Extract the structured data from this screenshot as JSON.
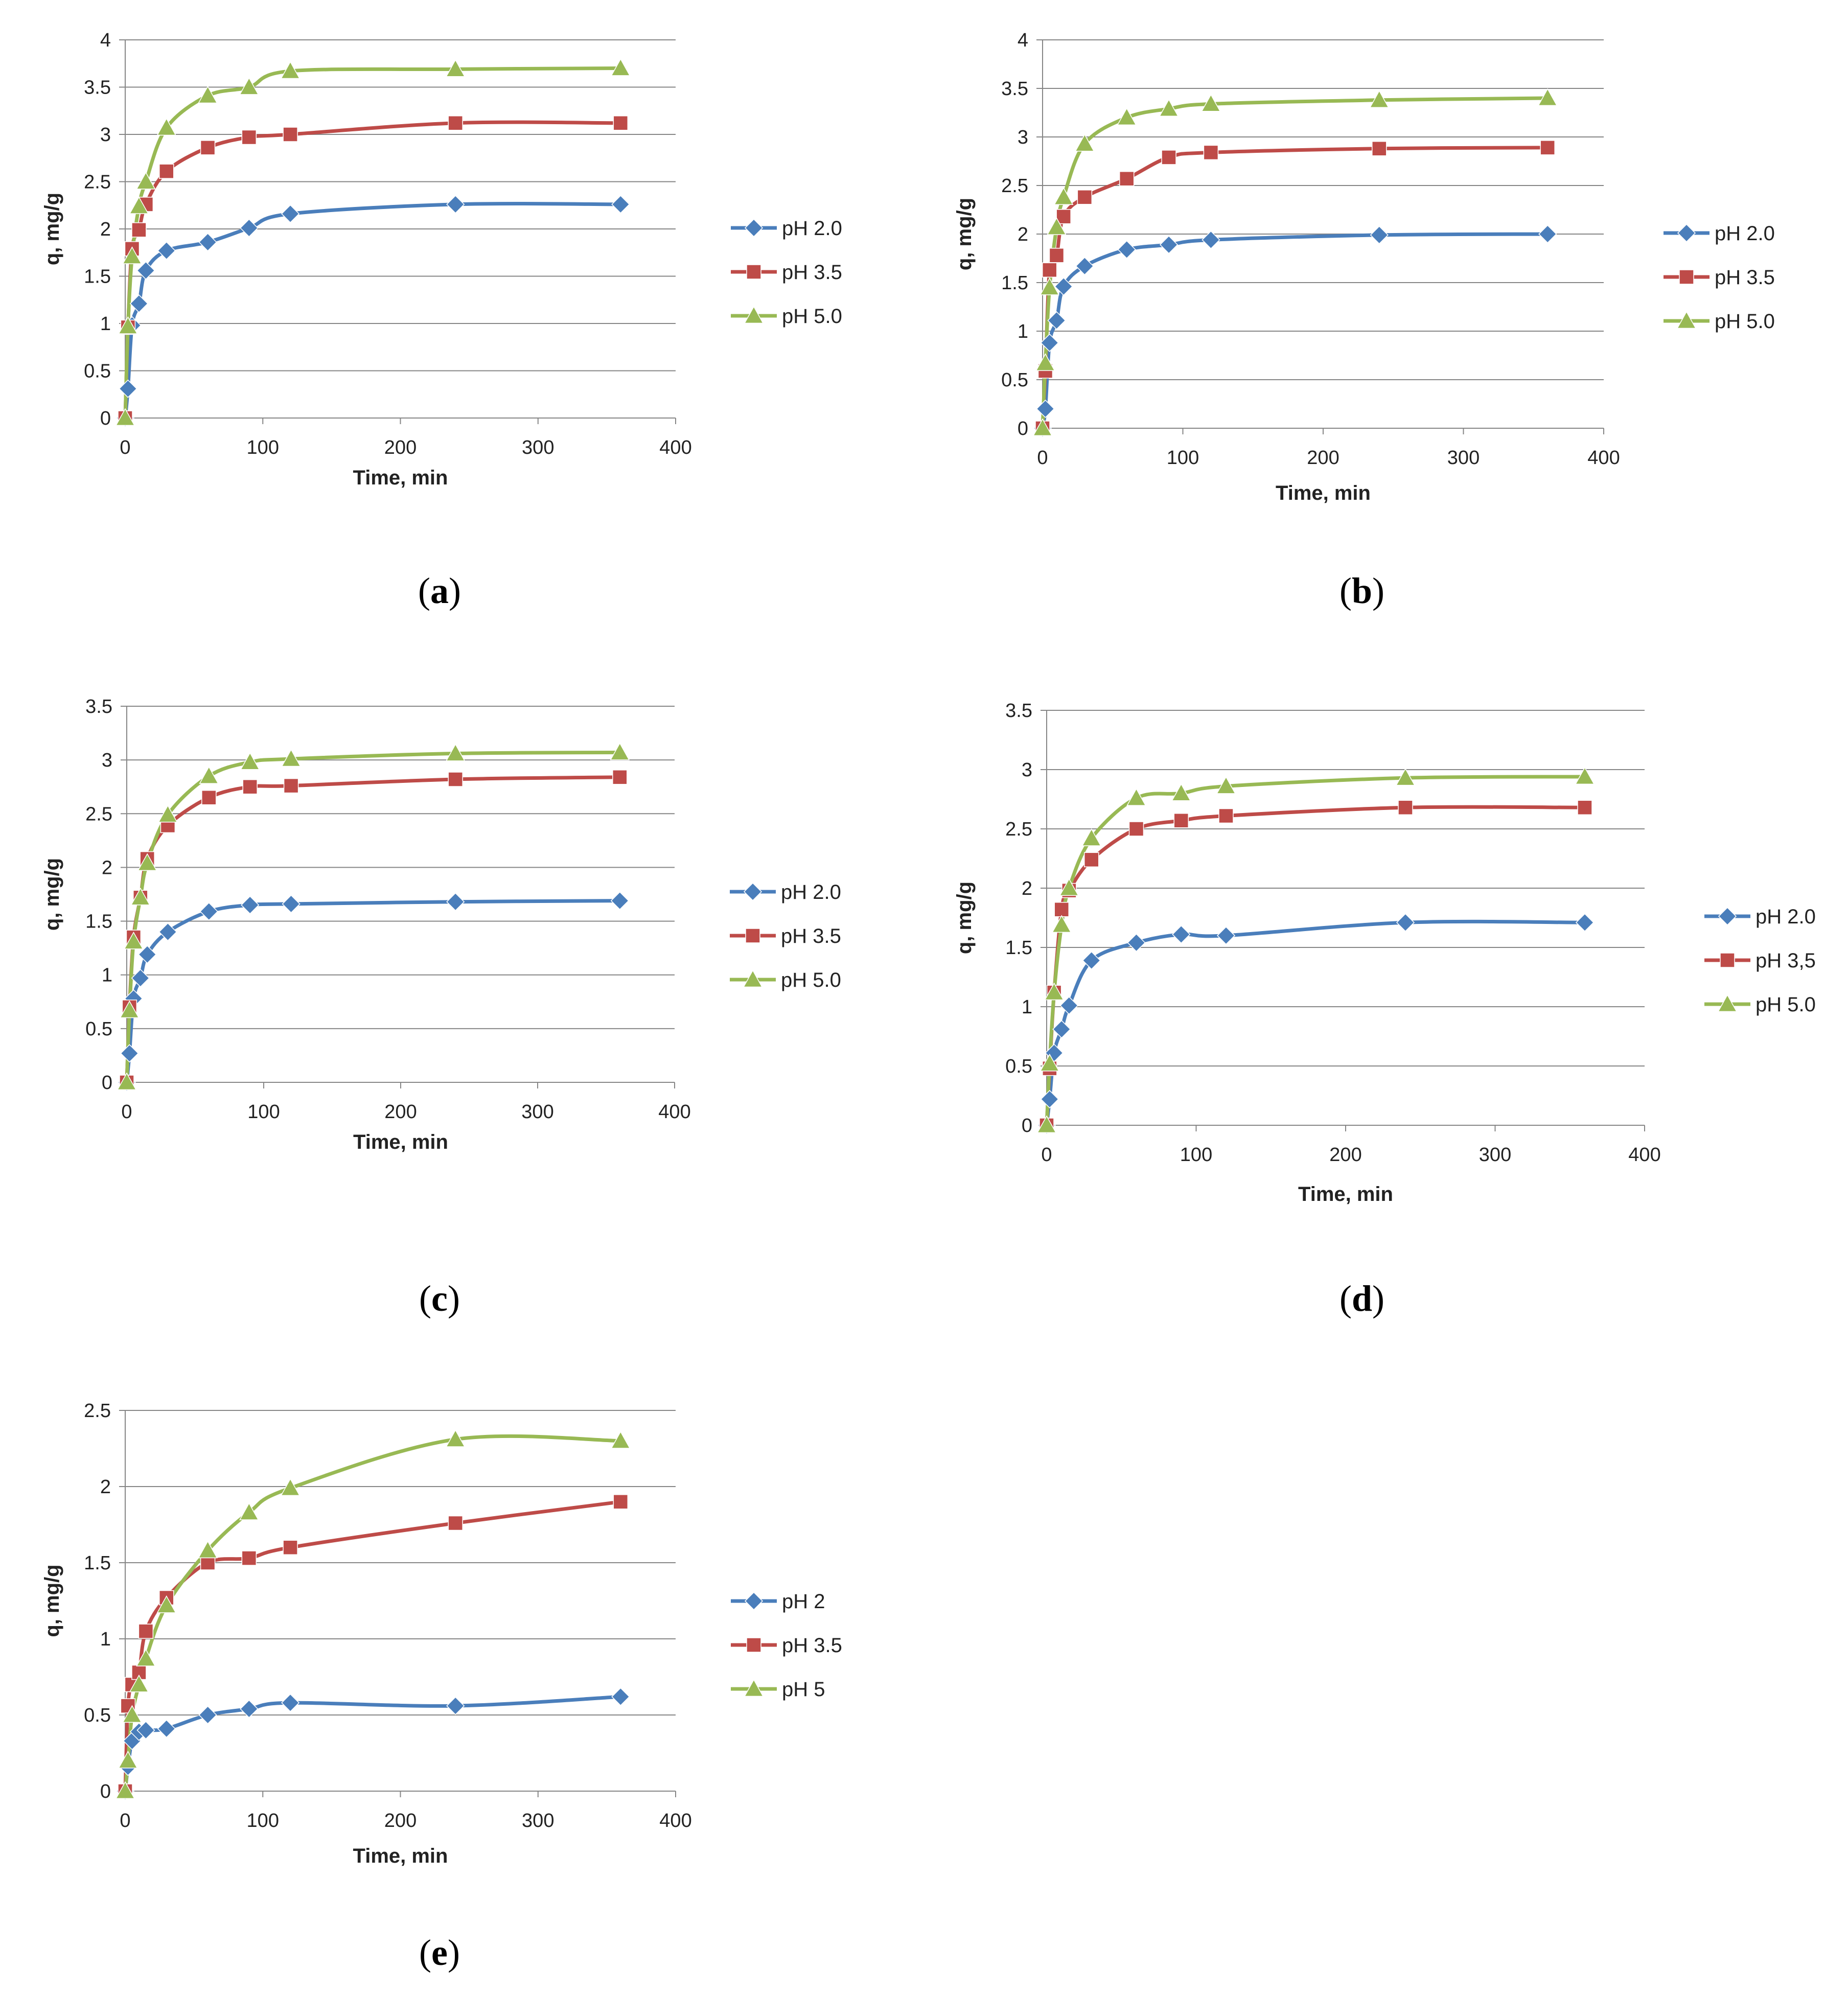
{
  "colors": {
    "pH2": "#4A7EBB",
    "pH35": "#BE4B48",
    "pH5": "#98B954",
    "grid": "#868686"
  },
  "panels": [
    {
      "id": "a",
      "label_open": "(",
      "label_letter": "a",
      "label_close": ")",
      "xlabel": "Time, min",
      "ylabel": "q, mg/g",
      "chart_data": {
        "type": "line",
        "xlim": [
          0,
          400
        ],
        "ylim": [
          0,
          4
        ],
        "xticks": [
          0,
          100,
          200,
          300,
          400
        ],
        "yticks": [
          0,
          0.5,
          1,
          1.5,
          2,
          2.5,
          3,
          3.5,
          4
        ],
        "grid": true,
        "legend": "right",
        "x": [
          0,
          2,
          5,
          10,
          15,
          30,
          60,
          90,
          120,
          240,
          360
        ],
        "series": [
          {
            "name": "pH 2.0",
            "marker": "diamond",
            "color": "#4A7EBB",
            "values": [
              0,
              0.31,
              0.98,
              1.21,
              1.56,
              1.77,
              1.86,
              2.01,
              2.16,
              2.26,
              2.26
            ]
          },
          {
            "name": "pH 3.5",
            "marker": "square",
            "color": "#BE4B48",
            "values": [
              0,
              0.96,
              1.79,
              1.99,
              2.26,
              2.61,
              2.86,
              2.97,
              3.0,
              3.12,
              3.12
            ]
          },
          {
            "name": "pH 5.0",
            "marker": "triangle",
            "color": "#98B954",
            "values": [
              0,
              0.97,
              1.71,
              2.24,
              2.5,
              3.07,
              3.41,
              3.5,
              3.67,
              3.69,
              3.7
            ]
          }
        ]
      }
    },
    {
      "id": "b",
      "label_open": "(",
      "label_letter": "b",
      "label_close": ")",
      "xlabel": "Time, min",
      "ylabel": "q, mg/g",
      "chart_data": {
        "type": "line",
        "xlim": [
          0,
          400
        ],
        "ylim": [
          0,
          4
        ],
        "xticks": [
          0,
          100,
          200,
          300,
          400
        ],
        "yticks": [
          0,
          0.5,
          1,
          1.5,
          2,
          2.5,
          3,
          3.5,
          4
        ],
        "grid": true,
        "legend": "right",
        "x": [
          0,
          2,
          5,
          10,
          15,
          30,
          60,
          90,
          120,
          240,
          360
        ],
        "series": [
          {
            "name": "pH 2.0",
            "marker": "diamond",
            "color": "#4A7EBB",
            "values": [
              0,
              0.2,
              0.88,
              1.11,
              1.46,
              1.67,
              1.84,
              1.89,
              1.94,
              1.99,
              2.0
            ]
          },
          {
            "name": "pH 3.5",
            "marker": "square",
            "color": "#BE4B48",
            "values": [
              0,
              0.59,
              1.63,
              1.78,
              2.18,
              2.38,
              2.57,
              2.79,
              2.84,
              2.88,
              2.89
            ]
          },
          {
            "name": "pH 5.0",
            "marker": "triangle",
            "color": "#98B954",
            "values": [
              0,
              0.67,
              1.45,
              2.07,
              2.38,
              2.93,
              3.2,
              3.29,
              3.34,
              3.38,
              3.4
            ]
          }
        ]
      }
    },
    {
      "id": "c",
      "label_open": "(",
      "label_letter": "c",
      "label_close": ")",
      "xlabel": "Time, min",
      "ylabel": "q, mg/g",
      "chart_data": {
        "type": "line",
        "xlim": [
          0,
          400
        ],
        "ylim": [
          0,
          3.5
        ],
        "xticks": [
          0,
          100,
          200,
          300,
          400
        ],
        "yticks": [
          0,
          0.5,
          1,
          1.5,
          2,
          2.5,
          3,
          3.5
        ],
        "grid": true,
        "legend": "right",
        "x": [
          0,
          2,
          5,
          10,
          15,
          30,
          60,
          90,
          120,
          240,
          360
        ],
        "series": [
          {
            "name": "pH 2.0",
            "marker": "diamond",
            "color": "#4A7EBB",
            "values": [
              0,
              0.27,
              0.78,
              0.97,
              1.19,
              1.4,
              1.59,
              1.65,
              1.66,
              1.68,
              1.69
            ]
          },
          {
            "name": "pH 3.5",
            "marker": "square",
            "color": "#BE4B48",
            "values": [
              0,
              0.7,
              1.35,
              1.72,
              2.08,
              2.39,
              2.65,
              2.75,
              2.76,
              2.82,
              2.84
            ]
          },
          {
            "name": "pH 5.0",
            "marker": "triangle",
            "color": "#98B954",
            "values": [
              0,
              0.67,
              1.31,
              1.72,
              2.04,
              2.49,
              2.85,
              2.98,
              3.01,
              3.06,
              3.07
            ]
          }
        ]
      }
    },
    {
      "id": "d",
      "label_open": "(",
      "label_letter": "d",
      "label_close": ")",
      "xlabel": "Time, min",
      "ylabel": "q, mg/g",
      "chart_data": {
        "type": "line",
        "xlim": [
          0,
          400
        ],
        "ylim": [
          0,
          3.5
        ],
        "xticks": [
          0,
          100,
          200,
          300,
          400
        ],
        "yticks": [
          0,
          0.5,
          1,
          1.5,
          2,
          2.5,
          3,
          3.5
        ],
        "grid": true,
        "legend": "right",
        "x": [
          0,
          2,
          5,
          10,
          15,
          30,
          60,
          90,
          120,
          240,
          360
        ],
        "series": [
          {
            "name": "pH 2.0",
            "marker": "diamond",
            "color": "#4A7EBB",
            "values": [
              0,
              0.22,
              0.61,
              0.81,
              1.01,
              1.39,
              1.54,
              1.61,
              1.6,
              1.71,
              1.71
            ]
          },
          {
            "name": "pH 3,5",
            "marker": "square",
            "color": "#BE4B48",
            "values": [
              0,
              0.48,
              1.12,
              1.82,
              1.98,
              2.24,
              2.5,
              2.57,
              2.61,
              2.68,
              2.68
            ]
          },
          {
            "name": "pH 5.0",
            "marker": "triangle",
            "color": "#98B954",
            "values": [
              0,
              0.52,
              1.12,
              1.69,
              2.0,
              2.42,
              2.76,
              2.8,
              2.86,
              2.93,
              2.94
            ]
          }
        ]
      }
    },
    {
      "id": "e",
      "label_open": "(",
      "label_letter": "e",
      "label_close": ")",
      "xlabel": "Time, min",
      "ylabel": "q, mg/g",
      "chart_data": {
        "type": "line",
        "xlim": [
          0,
          400
        ],
        "ylim": [
          0,
          2.5
        ],
        "xticks": [
          0,
          100,
          200,
          300,
          400
        ],
        "yticks": [
          0,
          0.5,
          1,
          1.5,
          2,
          2.5
        ],
        "grid": true,
        "legend": "right",
        "x": [
          0,
          2,
          5,
          10,
          15,
          30,
          60,
          90,
          120,
          240,
          360
        ],
        "series": [
          {
            "name": "pH 2",
            "marker": "diamond",
            "color": "#4A7EBB",
            "values": [
              0,
              0.16,
              0.33,
              0.39,
              0.4,
              0.41,
              0.5,
              0.54,
              0.58,
              0.56,
              0.62
            ]
          },
          {
            "name": "pH 3.5",
            "marker": "square",
            "color": "#BE4B48",
            "values": [
              0,
              0.56,
              0.7,
              0.78,
              1.05,
              1.27,
              1.5,
              1.53,
              1.6,
              1.76,
              1.9
            ]
          },
          {
            "name": "pH 5",
            "marker": "triangle",
            "color": "#98B954",
            "values": [
              0,
              0.2,
              0.5,
              0.7,
              0.87,
              1.22,
              1.58,
              1.83,
              1.99,
              2.31,
              2.3
            ]
          }
        ]
      }
    }
  ]
}
